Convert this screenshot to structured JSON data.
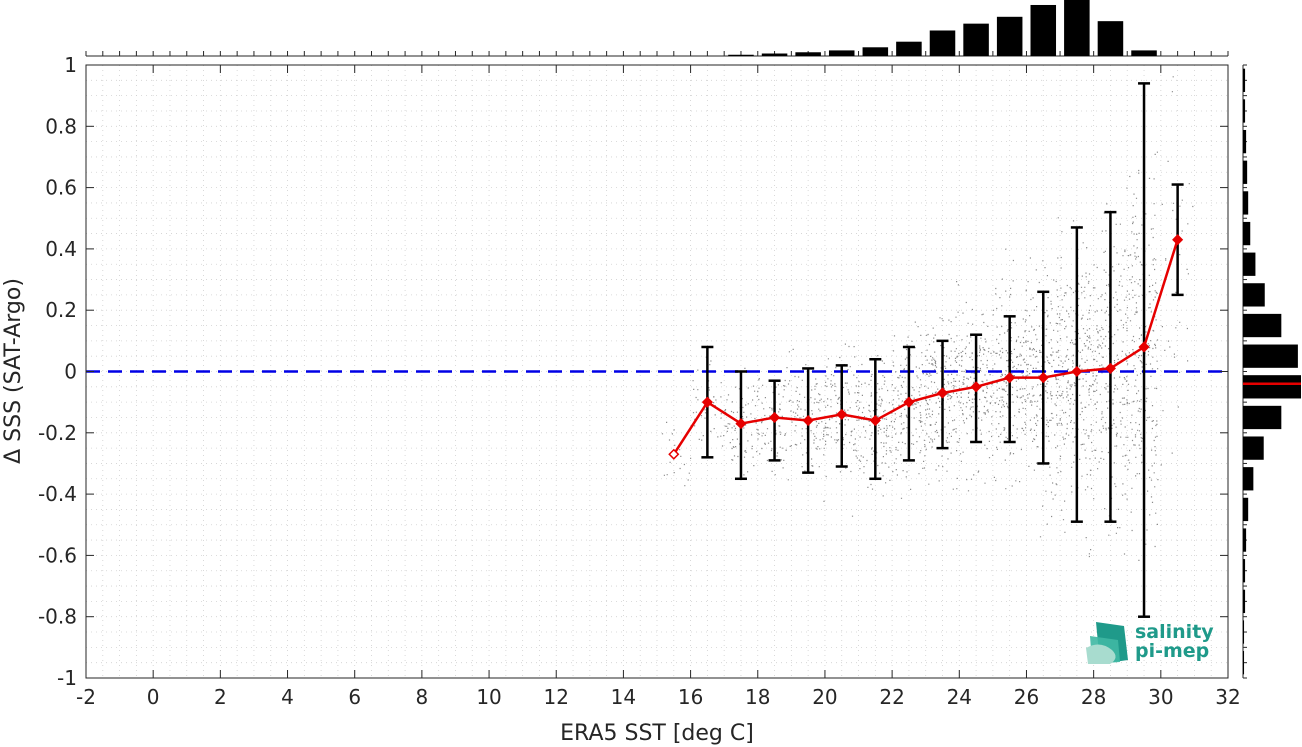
{
  "chart_data": {
    "type": "scatter",
    "xlabel": "ERA5 SST [deg C]",
    "ylabel": "Δ SSS (SAT-Argo)",
    "xlim": [
      -2,
      32
    ],
    "ylim": [
      -1,
      1
    ],
    "xticks": [
      "-2",
      "0",
      "2",
      "4",
      "6",
      "8",
      "10",
      "12",
      "14",
      "16",
      "18",
      "20",
      "22",
      "24",
      "26",
      "28",
      "30",
      "32"
    ],
    "yticks": [
      "-1",
      "-0.8",
      "-0.6",
      "-0.4",
      "-0.2",
      "0",
      "0.2",
      "0.4",
      "0.6",
      "0.8",
      "1"
    ],
    "grid": true,
    "reference_line": {
      "y": 0,
      "color": "#0000e6",
      "style": "dashed"
    },
    "binned_mean": {
      "color": "#e60000",
      "x": [
        15.5,
        16.5,
        17.5,
        18.5,
        19.5,
        20.5,
        21.5,
        22.5,
        23.5,
        24.5,
        25.5,
        26.5,
        27.5,
        28.5,
        29.5,
        30.5
      ],
      "mean": [
        -0.27,
        -0.1,
        -0.17,
        -0.15,
        -0.16,
        -0.14,
        -0.16,
        -0.1,
        -0.07,
        -0.05,
        -0.02,
        -0.02,
        0.0,
        0.01,
        0.08,
        0.43
      ],
      "err_low": [
        null,
        -0.28,
        -0.35,
        -0.29,
        -0.33,
        -0.31,
        -0.35,
        -0.29,
        -0.25,
        -0.23,
        -0.23,
        -0.3,
        -0.49,
        -0.49,
        -0.8,
        0.25
      ],
      "err_high": [
        null,
        0.08,
        0.0,
        -0.03,
        0.01,
        0.02,
        0.04,
        0.08,
        0.1,
        0.12,
        0.18,
        0.26,
        0.47,
        0.52,
        0.94,
        0.61
      ]
    },
    "scatter": {
      "color": "#8c8c8c",
      "x_range": [
        15,
        31
      ],
      "approx_points": 9000
    },
    "top_histogram": {
      "x": [
        17.5,
        18.5,
        19.5,
        20.5,
        21.5,
        22.5,
        23.5,
        24.5,
        25.5,
        26.5,
        27.5,
        28.5,
        29.5
      ],
      "counts": [
        0.02,
        0.04,
        0.06,
        0.09,
        0.14,
        0.23,
        0.41,
        0.52,
        0.63,
        0.82,
        0.9,
        0.56,
        0.09
      ]
    },
    "right_histogram": {
      "y": [
        0.95,
        0.85,
        0.75,
        0.65,
        0.55,
        0.45,
        0.35,
        0.25,
        0.15,
        0.05,
        -0.05,
        -0.15,
        -0.25,
        -0.35,
        -0.45,
        -0.55,
        -0.65,
        -0.75,
        -0.85,
        -0.95
      ],
      "counts": [
        0.02,
        0.02,
        0.03,
        0.04,
        0.05,
        0.07,
        0.12,
        0.21,
        0.37,
        0.53,
        0.56,
        0.37,
        0.2,
        0.1,
        0.05,
        0.03,
        0.02,
        0.02,
        0.01,
        0.01
      ],
      "median_line": {
        "y": -0.04,
        "color": "#e60000"
      }
    }
  },
  "logo": {
    "line1": "salinity",
    "line2": "pi-mep",
    "color": "#1f9a8a"
  }
}
